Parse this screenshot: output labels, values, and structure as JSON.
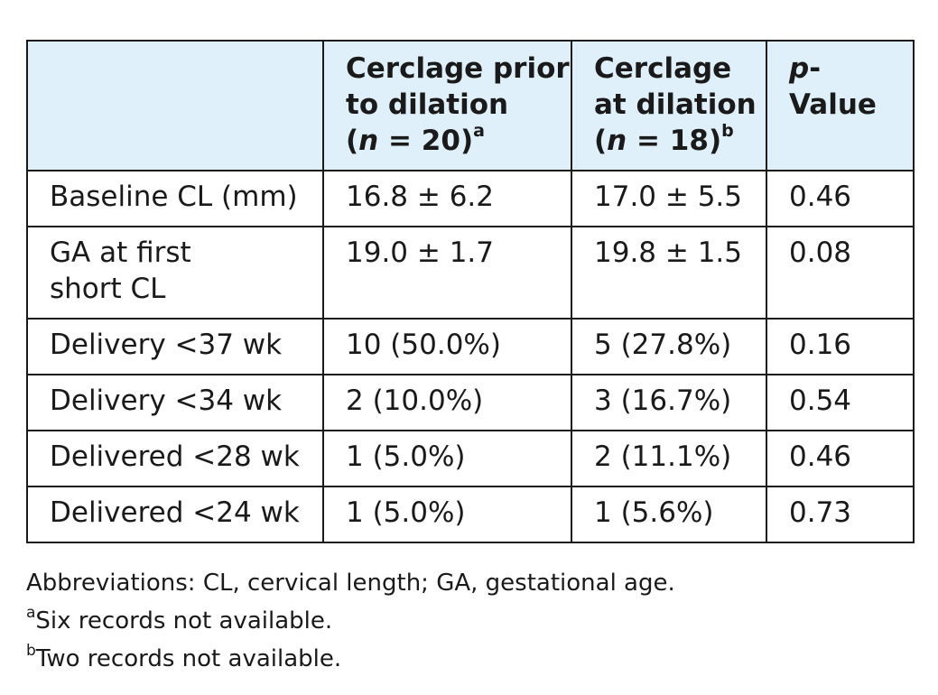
{
  "table": {
    "headers": [
      {
        "lines": [
          ""
        ]
      },
      {
        "lines": [
          "Cerclage prior",
          "to dilation"
        ],
        "n_label": "n",
        "n_rest": " = 20)",
        "footnote": "a"
      },
      {
        "lines": [
          "Cerclage",
          "at dilation"
        ],
        "n_label": "n",
        "n_rest": " = 18)",
        "footnote": "b"
      },
      {
        "italic_prefix": "p",
        "rest": "-Value"
      }
    ],
    "rows": [
      {
        "label_lines": [
          "Baseline CL (mm)"
        ],
        "prior": "16.8 ± 6.2",
        "at": "17.0 ± 5.5",
        "p": "0.46"
      },
      {
        "label_lines": [
          "GA at first",
          "short CL"
        ],
        "prior": "19.0 ± 1.7",
        "at": "19.8 ± 1.5",
        "p": "0.08"
      },
      {
        "label_lines": [
          "Delivery <37 wk"
        ],
        "prior": "10 (50.0%)",
        "at": "5 (27.8%)",
        "p": "0.16"
      },
      {
        "label_lines": [
          "Delivery <34 wk"
        ],
        "prior": "2 (10.0%)",
        "at": "3 (16.7%)",
        "p": "0.54"
      },
      {
        "label_lines": [
          "Delivered <28 wk"
        ],
        "prior": "1 (5.0%)",
        "at": "2 (11.1%)",
        "p": "0.46"
      },
      {
        "label_lines": [
          "Delivered <24 wk"
        ],
        "prior": "1 (5.0%)",
        "at": "1 (5.6%)",
        "p": "0.73"
      }
    ]
  },
  "notes": {
    "abbreviations": "Abbreviations: CL, cervical length; GA, gestational age.",
    "a_marker": "a",
    "a_text": "Six records not available.",
    "b_marker": "b",
    "b_text": "Two records not available."
  },
  "colors": {
    "header_bg": "#dff0fb",
    "border": "#1a1a1a",
    "text": "#1a1a1a"
  }
}
